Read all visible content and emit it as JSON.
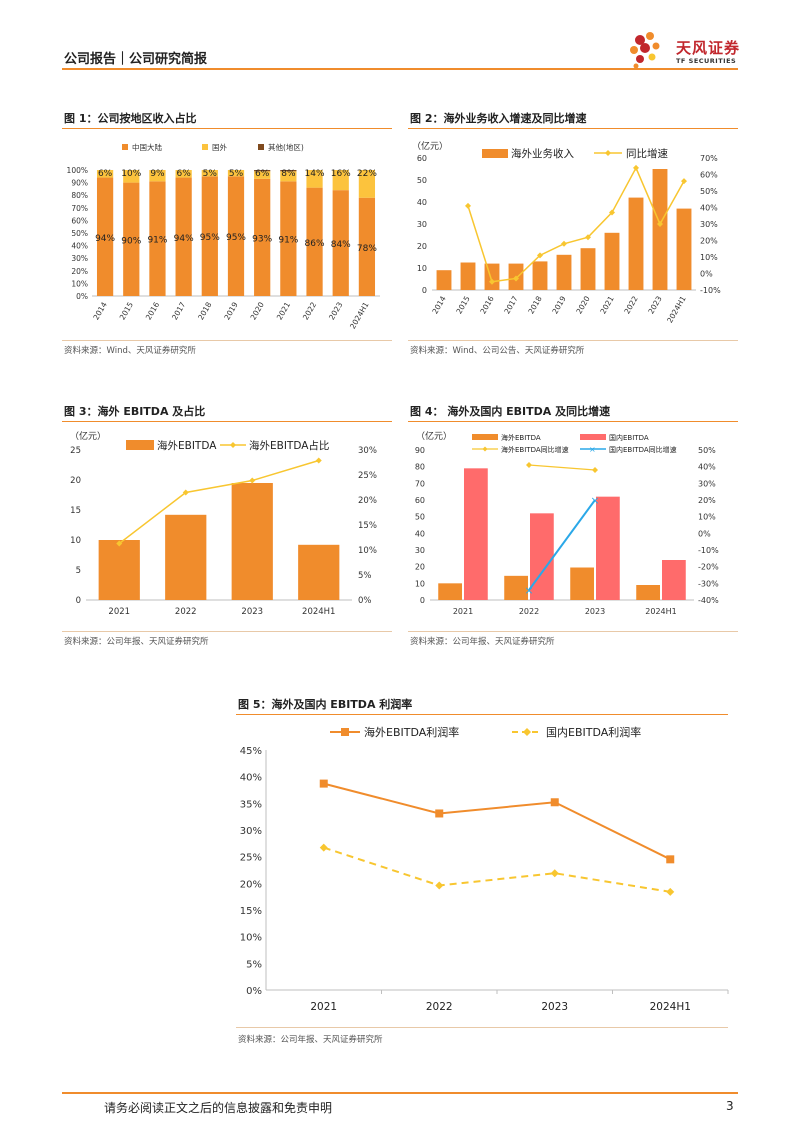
{
  "header": {
    "title": "公司报告｜公司研究简报",
    "logo_cn": "天风证券",
    "logo_en": "TF SECURITIES"
  },
  "footer": {
    "disclaimer": "请务必阅读正文之后的信息披露和免责申明",
    "page": "3"
  },
  "figures": {
    "f1": {
      "title": "图 1：公司按地区收入占比",
      "source": "资料来源：Wind、天风证券研究所"
    },
    "f2": {
      "title": "图 2：海外业务收入增速及同比增速",
      "source": "资料来源：Wind、公司公告、天风证券研究所"
    },
    "f3": {
      "title": "图 3：海外 EBITDA 及占比",
      "source": "资料来源：公司年报、天风证券研究所"
    },
    "f4": {
      "title": "图 4： 海外及国内 EBITDA 及同比增速",
      "source": "资料来源：公司年报、天风证券研究所"
    },
    "f5": {
      "title": "图 5：海外及国内 EBITDA 利润率",
      "source": "资料来源：公司年报、天风证券研究所"
    }
  },
  "colors": {
    "orange": "#f08c2c",
    "yellow": "#fcc33d",
    "gold": "#f8c630",
    "red": "#ff6b6b",
    "blue": "#2aa8e8",
    "grid": "#d9d9d9"
  },
  "chart_data": [
    {
      "type": "bar",
      "stacked": true,
      "categories": [
        "2014",
        "2015",
        "2016",
        "2017",
        "2018",
        "2019",
        "2020",
        "2021",
        "2022",
        "2023",
        "2024H1"
      ],
      "series": [
        {
          "name": "中国大陆",
          "values": [
            94,
            90,
            91,
            94,
            95,
            95,
            93,
            91,
            86,
            84,
            78
          ],
          "labels": [
            "94%",
            "90%",
            "91%",
            "94%",
            "95%",
            "95%",
            "93%",
            "91%",
            "86%",
            "84%",
            "78%"
          ]
        },
        {
          "name": "国外",
          "values": [
            6,
            10,
            9,
            6,
            5,
            5,
            6,
            8,
            14,
            16,
            22
          ],
          "labels": [
            "6%",
            "10%",
            "9%",
            "6%",
            "5%",
            "5%",
            "6%",
            "8%",
            "14%",
            "16%",
            "22%"
          ]
        },
        {
          "name": "其他(地区)",
          "values": [
            0,
            0,
            0,
            0,
            0,
            0,
            1,
            1,
            0,
            0,
            0
          ]
        }
      ],
      "ylim": [
        0,
        100
      ],
      "yticks": [
        "0%",
        "10%",
        "20%",
        "30%",
        "40%",
        "50%",
        "60%",
        "70%",
        "80%",
        "90%",
        "100%"
      ]
    },
    {
      "type": "bar",
      "categories": [
        "2014",
        "2015",
        "2016",
        "2017",
        "2018",
        "2019",
        "2020",
        "2021",
        "2022",
        "2023",
        "2024H1"
      ],
      "unit": "（亿元）",
      "series": [
        {
          "name": "海外业务收入",
          "type": "bar",
          "axis": "left",
          "values": [
            9,
            12.5,
            12,
            12,
            13,
            16,
            19,
            26,
            42,
            55,
            37
          ]
        },
        {
          "name": "同比增速",
          "type": "line",
          "axis": "right",
          "values": [
            null,
            41,
            -5,
            -3,
            11,
            18,
            22,
            37,
            64,
            30,
            56
          ]
        }
      ],
      "ylim": [
        0,
        60
      ],
      "y2lim": [
        -10,
        70
      ],
      "yticks": [
        "0",
        "10",
        "20",
        "30",
        "40",
        "50",
        "60"
      ],
      "y2ticks": [
        "-10%",
        "0%",
        "10%",
        "20%",
        "30%",
        "40%",
        "50%",
        "60%",
        "70%"
      ]
    },
    {
      "type": "bar",
      "categories": [
        "2021",
        "2022",
        "2023",
        "2024H1"
      ],
      "unit": "（亿元）",
      "series": [
        {
          "name": "海外EBITDA",
          "type": "bar",
          "axis": "left",
          "values": [
            10,
            14.2,
            19.5,
            9.2
          ]
        },
        {
          "name": "海外EBITDA占比",
          "type": "line",
          "axis": "right",
          "values": [
            11.3,
            21.5,
            23.9,
            27.9
          ]
        }
      ],
      "ylim": [
        0,
        25
      ],
      "y2lim": [
        0,
        30
      ],
      "yticks": [
        "0",
        "5",
        "10",
        "15",
        "20",
        "25"
      ],
      "y2ticks": [
        "0%",
        "5%",
        "10%",
        "15%",
        "20%",
        "25%",
        "30%"
      ]
    },
    {
      "type": "bar",
      "categories": [
        "2021",
        "2022",
        "2023",
        "2024H1"
      ],
      "unit": "（亿元）",
      "series": [
        {
          "name": "海外EBITDA",
          "type": "bar",
          "axis": "left",
          "values": [
            10,
            14.5,
            19.5,
            9
          ]
        },
        {
          "name": "国内EBITDA",
          "type": "bar",
          "axis": "left",
          "values": [
            79,
            52,
            62,
            24
          ]
        },
        {
          "name": "海外EBITDA同比增速",
          "type": "line",
          "axis": "right",
          "values": [
            null,
            41,
            38,
            null
          ]
        },
        {
          "name": "国内EBITDA同比增速",
          "type": "line",
          "axis": "right",
          "values": [
            null,
            -34,
            20,
            null
          ]
        }
      ],
      "ylim": [
        0,
        90
      ],
      "y2lim": [
        -40,
        50
      ],
      "yticks": [
        "0",
        "10",
        "20",
        "30",
        "40",
        "50",
        "60",
        "70",
        "80",
        "90"
      ],
      "y2ticks": [
        "-40%",
        "-30%",
        "-20%",
        "-10%",
        "0%",
        "10%",
        "20%",
        "30%",
        "40%",
        "50%"
      ]
    },
    {
      "type": "line",
      "categories": [
        "2021",
        "2022",
        "2023",
        "2024H1"
      ],
      "series": [
        {
          "name": "海外EBITDA利润率",
          "values": [
            38.7,
            33.1,
            35.2,
            24.5
          ]
        },
        {
          "name": "国内EBITDA利润率",
          "values": [
            26.7,
            19.6,
            21.9,
            18.4
          ]
        }
      ],
      "ylim": [
        0,
        45
      ],
      "yticks": [
        "0%",
        "5%",
        "10%",
        "15%",
        "20%",
        "25%",
        "30%",
        "35%",
        "40%",
        "45%"
      ]
    }
  ]
}
